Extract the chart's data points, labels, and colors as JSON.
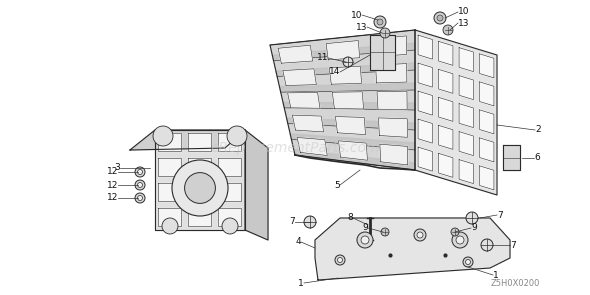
{
  "bg_color": "#ffffff",
  "watermark": "eReplacementParts.com",
  "diagram_code": "Z5H0X0200",
  "fig_width": 5.9,
  "fig_height": 2.95,
  "dpi": 100,
  "line_color": "#2a2a2a",
  "fill_light": "#e8e8e8",
  "fill_mid": "#d0d0d0",
  "fill_dark": "#b8b8b8"
}
